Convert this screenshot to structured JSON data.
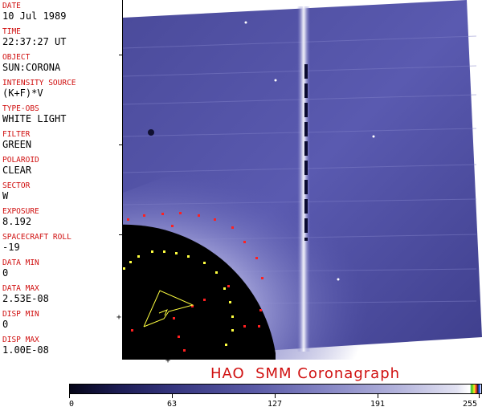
{
  "metadata": {
    "fields": [
      {
        "label": "DATE",
        "value": "10 Jul 1989"
      },
      {
        "label": "TIME",
        "value": "22:37:27 UT"
      },
      {
        "label": "OBJECT",
        "value": "SUN:CORONA"
      },
      {
        "label": "INTENSITY SOURCE",
        "value": "(K+F)*V"
      },
      {
        "label": "TYPE-OBS",
        "value": "WHITE LIGHT"
      },
      {
        "label": "FILTER",
        "value": "GREEN"
      },
      {
        "label": "POLAROID",
        "value": "CLEAR"
      },
      {
        "label": "SECTOR",
        "value": "W"
      },
      {
        "label": "EXPOSURE",
        "value": "8.192"
      },
      {
        "label": "SPACECRAFT ROLL",
        "value": "-19"
      },
      {
        "label": "DATA MIN",
        "value": "0"
      },
      {
        "label": "DATA MAX",
        "value": "2.53E-08"
      },
      {
        "label": "DISP MIN",
        "value": "0"
      },
      {
        "label": "DISP MAX",
        "value": "1.00E-08"
      }
    ]
  },
  "footer": {
    "title": "HAO  SMM Coronagraph"
  },
  "colorbar": {
    "labels": [
      "0",
      "63",
      "127",
      "191",
      "255"
    ],
    "min": 0,
    "max": 255,
    "colors": {
      "dark": "#050518",
      "mid": "#5a5aa6",
      "light": "#ffffff"
    }
  },
  "colors": {
    "label_red": "#d01010",
    "occulter": "#000000",
    "overlay_red": "#ff2020",
    "overlay_yellow": "#ffff40"
  }
}
